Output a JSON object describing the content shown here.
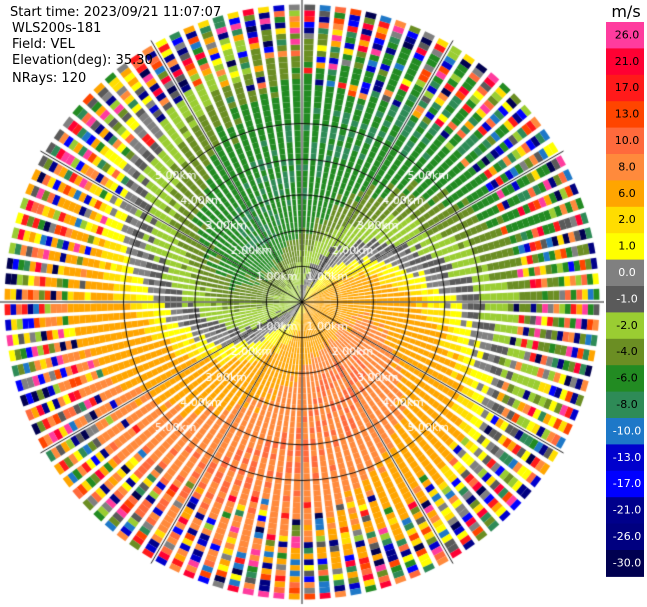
{
  "header": {
    "start_time": "Start time: 2023/09/21 11:07:07",
    "instrument": "WLS200s-181",
    "field": "Field: VEL",
    "elevation": "Elevation(deg): 35.30",
    "nrays": "NRays: 120"
  },
  "chart_data": {
    "type": "heatmap",
    "subtype": "radar-ppi",
    "title": "Start time: 2023/09/21 11:07:07",
    "field": "VEL",
    "units": "m/s",
    "elevation_deg": 35.3,
    "nrays": 120,
    "range_rings_km": [
      1.0,
      2.0,
      3.0,
      4.0,
      5.0
    ],
    "range_ring_labels": [
      "1.00km",
      "2.00km",
      "3.00km",
      "4.00km",
      "5.00km"
    ],
    "max_range_km": 5.0,
    "spoke_azimuths_deg": [
      0,
      30,
      60,
      90,
      120,
      150,
      180,
      210,
      240,
      270,
      300,
      330
    ],
    "colorbar": {
      "label": "m/s",
      "ticks": [
        "26.0",
        "21.0",
        "17.0",
        "13.0",
        "10.0",
        "8.0",
        "6.0",
        "2.0",
        "1.0",
        "0.0",
        "-1.0",
        "-2.0",
        "-4.0",
        "-6.0",
        "-8.0",
        "-10.0",
        "-13.0",
        "-17.0",
        "-21.0",
        "-26.0",
        "-30.0"
      ],
      "band_colors": [
        "#ff3c9e",
        "#ff0033",
        "#ff1a1a",
        "#ff4500",
        "#ff6a3c",
        "#ff8a3c",
        "#ffa500",
        "#ffdd00",
        "#ffff00",
        "#808080",
        "#5a5a5a",
        "#9acd32",
        "#6b8e23",
        "#228b22",
        "#2e8b57",
        "#1e78c8",
        "#0000cd",
        "#0000ff",
        "#00008b",
        "#000080",
        "#000050"
      ]
    },
    "velocity_pattern": {
      "max_speed_ms": 8.0,
      "positive_direction_deg": 112,
      "noise_start_km": 3.3
    }
  }
}
